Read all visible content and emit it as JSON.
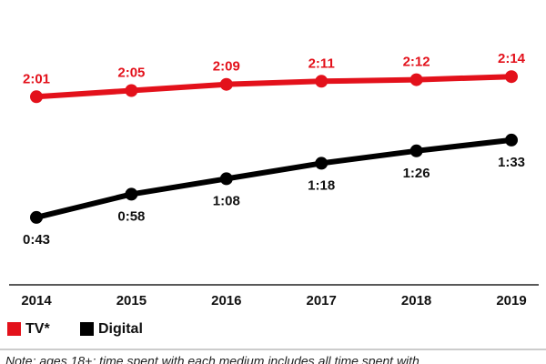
{
  "chart_data": {
    "type": "line",
    "categories": [
      "2014",
      "2015",
      "2016",
      "2017",
      "2018",
      "2019"
    ],
    "series": [
      {
        "name": "TV*",
        "color": "#e3111b",
        "values": [
          121,
          125,
          129,
          131,
          132,
          134
        ],
        "value_labels": [
          "2:01",
          "2:05",
          "2:09",
          "2:11",
          "2:12",
          "2:14"
        ]
      },
      {
        "name": "Digital",
        "color": "#000000",
        "values": [
          43,
          58,
          68,
          78,
          86,
          93
        ],
        "value_labels": [
          "0:43",
          "0:58",
          "1:08",
          "1:18",
          "1:26",
          "1:33"
        ]
      }
    ],
    "note": "Note: ages 18+; time spent with each medium includes all time spent with"
  }
}
